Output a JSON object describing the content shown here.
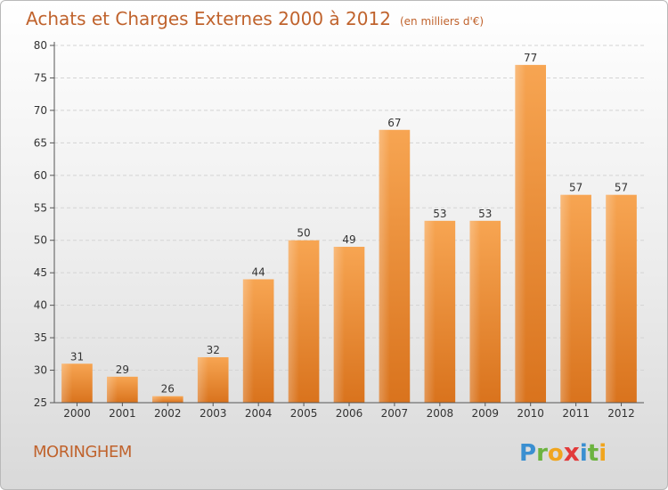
{
  "title": "Achats et Charges Externes 2000 à 2012",
  "unit": "(en milliers d'€)",
  "commune": "MORINGHEM",
  "logo": {
    "letters": [
      "P",
      "r",
      "o",
      "x",
      "i",
      "t",
      "i"
    ],
    "colors": [
      "#3a8fd1",
      "#6cb33f",
      "#f0a51e",
      "#e23a3a",
      "#3a8fd1",
      "#6cb33f",
      "#f0a51e"
    ]
  },
  "colors": {
    "bar": "#f0952e",
    "title": "#c0632d"
  },
  "chart_data": {
    "type": "bar",
    "title": "Achats et Charges Externes 2000 à 2012",
    "xlabel": "",
    "ylabel": "",
    "categories": [
      "2000",
      "2001",
      "2002",
      "2003",
      "2004",
      "2005",
      "2006",
      "2007",
      "2008",
      "2009",
      "2010",
      "2011",
      "2012"
    ],
    "values": [
      31,
      29,
      26,
      32,
      44,
      50,
      49,
      67,
      53,
      53,
      77,
      57,
      57
    ],
    "ylim": [
      25,
      80
    ],
    "yticks": [
      25,
      30,
      35,
      40,
      45,
      50,
      55,
      60,
      65,
      70,
      75,
      80
    ],
    "grid": true
  }
}
